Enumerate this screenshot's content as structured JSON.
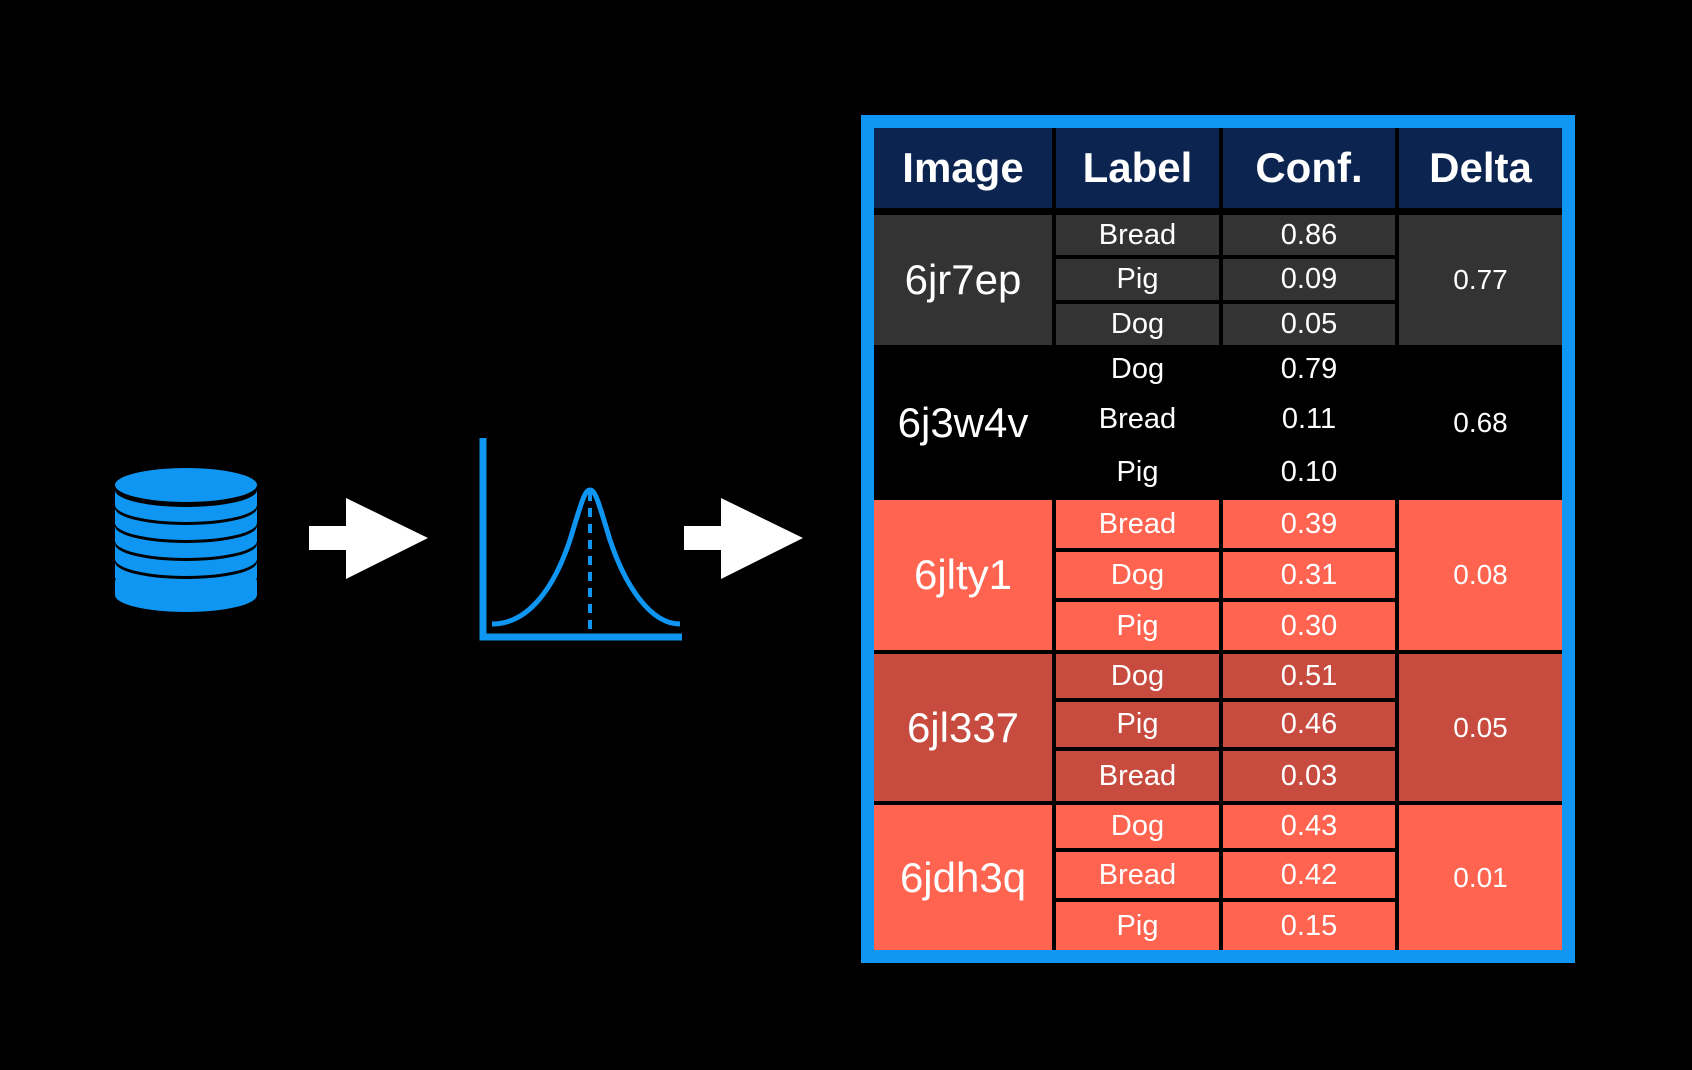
{
  "colors": {
    "background": "#000000",
    "accent_blue": "#0f96f2",
    "header_bg": "#0c2550",
    "arrow": "#ffffff",
    "group_dark": "#333333",
    "group_black": "#000000",
    "group_red": "#fe6450",
    "group_dark_red": "#c74b3e"
  },
  "icons": {
    "database": "database-icon",
    "arrow": "right-arrow-icon",
    "distribution": "bell-curve-icon"
  },
  "table": {
    "headers": [
      "Image",
      "Label",
      "Conf.",
      "Delta"
    ],
    "groups": [
      {
        "image": "6jr7ep",
        "delta": "0.77",
        "color": "#333333",
        "rows": [
          {
            "label": "Bread",
            "conf": "0.86"
          },
          {
            "label": "Pig",
            "conf": "0.09"
          },
          {
            "label": "Dog",
            "conf": "0.05"
          }
        ]
      },
      {
        "image": "6j3w4v",
        "delta": "0.68",
        "color": "#000000",
        "rows": [
          {
            "label": "Dog",
            "conf": "0.79"
          },
          {
            "label": "Bread",
            "conf": "0.11"
          },
          {
            "label": "Pig",
            "conf": "0.10"
          }
        ]
      },
      {
        "image": "6jlty1",
        "delta": "0.08",
        "color": "#fe6450",
        "rows": [
          {
            "label": "Bread",
            "conf": "0.39"
          },
          {
            "label": "Dog",
            "conf": "0.31"
          },
          {
            "label": "Pig",
            "conf": "0.30"
          }
        ]
      },
      {
        "image": "6jl337",
        "delta": "0.05",
        "color": "#c74b3e",
        "rows": [
          {
            "label": "Dog",
            "conf": "0.51"
          },
          {
            "label": "Pig",
            "conf": "0.46"
          },
          {
            "label": "Bread",
            "conf": "0.03"
          }
        ]
      },
      {
        "image": "6jdh3q",
        "delta": "0.01",
        "color": "#fe6450",
        "rows": [
          {
            "label": "Dog",
            "conf": "0.43"
          },
          {
            "label": "Bread",
            "conf": "0.42"
          },
          {
            "label": "Pig",
            "conf": "0.15"
          }
        ]
      }
    ]
  }
}
